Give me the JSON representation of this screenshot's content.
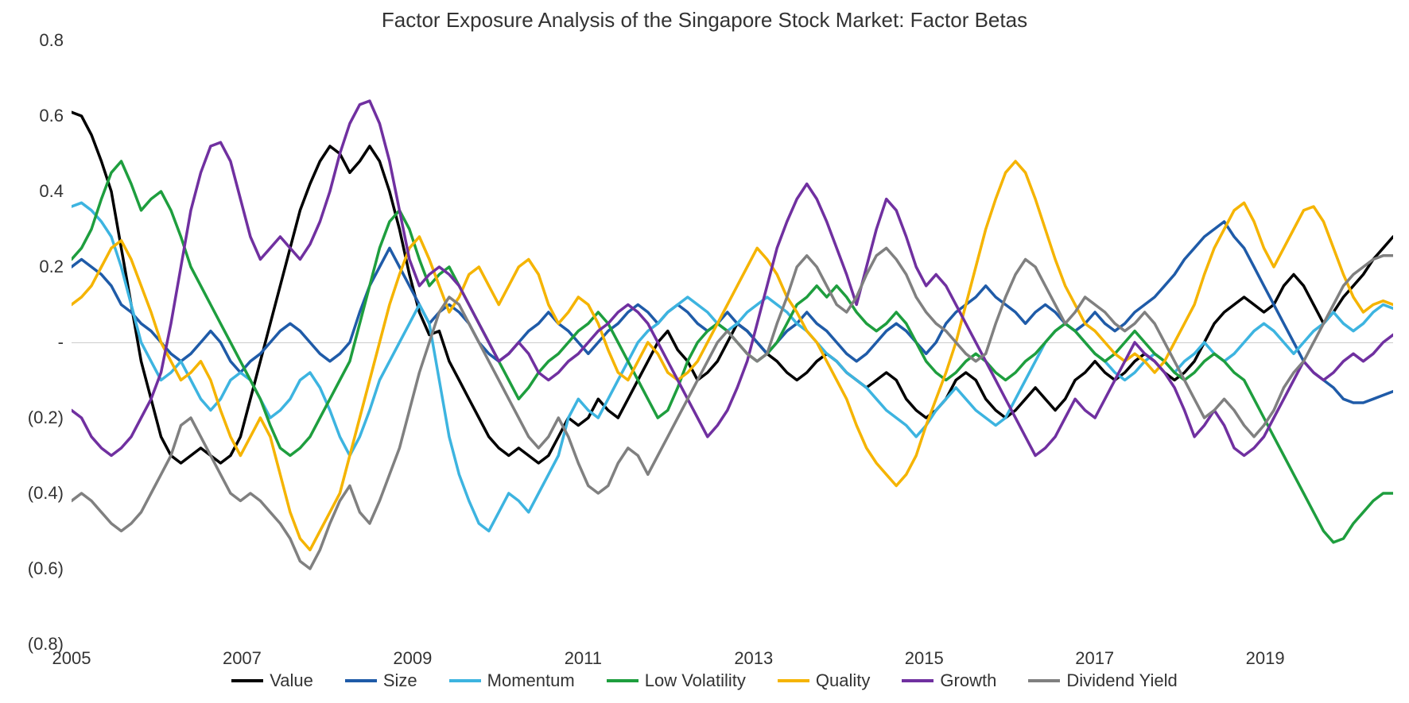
{
  "chart": {
    "type": "line",
    "title": "Factor Exposure Analysis of the Singapore Stock Market: Factor Betas",
    "title_fontsize": 26,
    "title_color": "#333333",
    "background_color": "#ffffff",
    "zero_line_color": "#cccccc",
    "label_fontsize": 22,
    "line_width": 3.5,
    "x_axis": {
      "ticks": [
        2005,
        2007,
        2009,
        2011,
        2013,
        2015,
        2017,
        2019
      ],
      "min": 2005,
      "max": 2020.5
    },
    "y_axis": {
      "ticks": [
        {
          "value": 0.8,
          "label": "0.8"
        },
        {
          "value": 0.6,
          "label": "0.6"
        },
        {
          "value": 0.4,
          "label": "0.4"
        },
        {
          "value": 0.2,
          "label": "0.2"
        },
        {
          "value": 0.0,
          "label": "-"
        },
        {
          "value": -0.2,
          "label": "(0.2)"
        },
        {
          "value": -0.4,
          "label": "(0.4)"
        },
        {
          "value": -0.6,
          "label": "(0.6)"
        },
        {
          "value": -0.8,
          "label": "(0.8)"
        }
      ],
      "min": -0.8,
      "max": 0.8
    },
    "series": [
      {
        "name": "Value",
        "color": "#000000",
        "data": [
          0.61,
          0.6,
          0.55,
          0.48,
          0.4,
          0.25,
          0.1,
          -0.05,
          -0.15,
          -0.25,
          -0.3,
          -0.32,
          -0.3,
          -0.28,
          -0.3,
          -0.32,
          -0.3,
          -0.25,
          -0.15,
          -0.05,
          0.05,
          0.15,
          0.25,
          0.35,
          0.42,
          0.48,
          0.52,
          0.5,
          0.45,
          0.48,
          0.52,
          0.48,
          0.4,
          0.3,
          0.18,
          0.08,
          0.02,
          0.03,
          -0.05,
          -0.1,
          -0.15,
          -0.2,
          -0.25,
          -0.28,
          -0.3,
          -0.28,
          -0.3,
          -0.32,
          -0.3,
          -0.25,
          -0.2,
          -0.22,
          -0.2,
          -0.15,
          -0.18,
          -0.2,
          -0.15,
          -0.1,
          -0.05,
          0.0,
          0.03,
          -0.02,
          -0.05,
          -0.1,
          -0.08,
          -0.05,
          0.0,
          0.05,
          0.03,
          0.0,
          -0.03,
          -0.05,
          -0.08,
          -0.1,
          -0.08,
          -0.05,
          -0.03,
          -0.05,
          -0.08,
          -0.1,
          -0.12,
          -0.1,
          -0.08,
          -0.1,
          -0.15,
          -0.18,
          -0.2,
          -0.18,
          -0.15,
          -0.1,
          -0.08,
          -0.1,
          -0.15,
          -0.18,
          -0.2,
          -0.18,
          -0.15,
          -0.12,
          -0.15,
          -0.18,
          -0.15,
          -0.1,
          -0.08,
          -0.05,
          -0.08,
          -0.1,
          -0.08,
          -0.05,
          -0.03,
          -0.05,
          -0.08,
          -0.1,
          -0.08,
          -0.05,
          0.0,
          0.05,
          0.08,
          0.1,
          0.12,
          0.1,
          0.08,
          0.1,
          0.15,
          0.18,
          0.15,
          0.1,
          0.05,
          0.08,
          0.12,
          0.15,
          0.18,
          0.22,
          0.25,
          0.28
        ]
      },
      {
        "name": "Size",
        "color": "#1f5ba8",
        "data": [
          0.2,
          0.22,
          0.2,
          0.18,
          0.15,
          0.1,
          0.08,
          0.05,
          0.03,
          0.0,
          -0.03,
          -0.05,
          -0.03,
          0.0,
          0.03,
          0.0,
          -0.05,
          -0.08,
          -0.05,
          -0.03,
          0.0,
          0.03,
          0.05,
          0.03,
          0.0,
          -0.03,
          -0.05,
          -0.03,
          0.0,
          0.08,
          0.15,
          0.2,
          0.25,
          0.2,
          0.15,
          0.1,
          0.05,
          0.08,
          0.1,
          0.08,
          0.05,
          0.0,
          -0.03,
          -0.05,
          -0.03,
          0.0,
          0.03,
          0.05,
          0.08,
          0.05,
          0.03,
          0.0,
          -0.03,
          0.0,
          0.03,
          0.05,
          0.08,
          0.1,
          0.08,
          0.05,
          0.08,
          0.1,
          0.08,
          0.05,
          0.03,
          0.05,
          0.08,
          0.05,
          0.03,
          0.0,
          -0.03,
          0.0,
          0.03,
          0.05,
          0.08,
          0.05,
          0.03,
          0.0,
          -0.03,
          -0.05,
          -0.03,
          0.0,
          0.03,
          0.05,
          0.03,
          0.0,
          -0.03,
          0.0,
          0.05,
          0.08,
          0.1,
          0.12,
          0.15,
          0.12,
          0.1,
          0.08,
          0.05,
          0.08,
          0.1,
          0.08,
          0.05,
          0.03,
          0.05,
          0.08,
          0.05,
          0.03,
          0.05,
          0.08,
          0.1,
          0.12,
          0.15,
          0.18,
          0.22,
          0.25,
          0.28,
          0.3,
          0.32,
          0.28,
          0.25,
          0.2,
          0.15,
          0.1,
          0.05,
          0.0,
          -0.05,
          -0.08,
          -0.1,
          -0.12,
          -0.15,
          -0.16,
          -0.16,
          -0.15,
          -0.14,
          -0.13
        ]
      },
      {
        "name": "Momentum",
        "color": "#3db4e0",
        "data": [
          0.36,
          0.37,
          0.35,
          0.32,
          0.28,
          0.2,
          0.1,
          0.0,
          -0.05,
          -0.1,
          -0.08,
          -0.05,
          -0.1,
          -0.15,
          -0.18,
          -0.15,
          -0.1,
          -0.08,
          -0.1,
          -0.15,
          -0.2,
          -0.18,
          -0.15,
          -0.1,
          -0.08,
          -0.12,
          -0.18,
          -0.25,
          -0.3,
          -0.25,
          -0.18,
          -0.1,
          -0.05,
          0.0,
          0.05,
          0.1,
          0.05,
          -0.1,
          -0.25,
          -0.35,
          -0.42,
          -0.48,
          -0.5,
          -0.45,
          -0.4,
          -0.42,
          -0.45,
          -0.4,
          -0.35,
          -0.3,
          -0.2,
          -0.15,
          -0.18,
          -0.2,
          -0.15,
          -0.1,
          -0.05,
          0.0,
          0.03,
          0.05,
          0.08,
          0.1,
          0.12,
          0.1,
          0.08,
          0.05,
          0.03,
          0.05,
          0.08,
          0.1,
          0.12,
          0.1,
          0.08,
          0.05,
          0.03,
          0.0,
          -0.03,
          -0.05,
          -0.08,
          -0.1,
          -0.12,
          -0.15,
          -0.18,
          -0.2,
          -0.22,
          -0.25,
          -0.22,
          -0.18,
          -0.15,
          -0.12,
          -0.15,
          -0.18,
          -0.2,
          -0.22,
          -0.2,
          -0.15,
          -0.1,
          -0.05,
          0.0,
          0.03,
          0.05,
          0.03,
          0.0,
          -0.03,
          -0.05,
          -0.08,
          -0.1,
          -0.08,
          -0.05,
          -0.03,
          -0.05,
          -0.08,
          -0.05,
          -0.03,
          0.0,
          -0.03,
          -0.05,
          -0.03,
          0.0,
          0.03,
          0.05,
          0.03,
          0.0,
          -0.03,
          0.0,
          0.03,
          0.05,
          0.08,
          0.05,
          0.03,
          0.05,
          0.08,
          0.1,
          0.09
        ]
      },
      {
        "name": "Low Volatility",
        "color": "#1e9e3e",
        "data": [
          0.22,
          0.25,
          0.3,
          0.38,
          0.45,
          0.48,
          0.42,
          0.35,
          0.38,
          0.4,
          0.35,
          0.28,
          0.2,
          0.15,
          0.1,
          0.05,
          0.0,
          -0.05,
          -0.1,
          -0.15,
          -0.22,
          -0.28,
          -0.3,
          -0.28,
          -0.25,
          -0.2,
          -0.15,
          -0.1,
          -0.05,
          0.05,
          0.15,
          0.25,
          0.32,
          0.35,
          0.3,
          0.22,
          0.15,
          0.18,
          0.2,
          0.15,
          0.1,
          0.05,
          0.0,
          -0.05,
          -0.1,
          -0.15,
          -0.12,
          -0.08,
          -0.05,
          -0.03,
          0.0,
          0.03,
          0.05,
          0.08,
          0.05,
          0.0,
          -0.05,
          -0.1,
          -0.15,
          -0.2,
          -0.18,
          -0.12,
          -0.05,
          0.0,
          0.03,
          0.05,
          0.03,
          0.0,
          -0.03,
          -0.05,
          -0.03,
          0.0,
          0.05,
          0.1,
          0.12,
          0.15,
          0.12,
          0.15,
          0.12,
          0.08,
          0.05,
          0.03,
          0.05,
          0.08,
          0.05,
          0.0,
          -0.05,
          -0.08,
          -0.1,
          -0.08,
          -0.05,
          -0.03,
          -0.05,
          -0.08,
          -0.1,
          -0.08,
          -0.05,
          -0.03,
          0.0,
          0.03,
          0.05,
          0.03,
          0.0,
          -0.03,
          -0.05,
          -0.03,
          0.0,
          0.03,
          0.0,
          -0.03,
          -0.05,
          -0.08,
          -0.1,
          -0.08,
          -0.05,
          -0.03,
          -0.05,
          -0.08,
          -0.1,
          -0.15,
          -0.2,
          -0.25,
          -0.3,
          -0.35,
          -0.4,
          -0.45,
          -0.5,
          -0.53,
          -0.52,
          -0.48,
          -0.45,
          -0.42,
          -0.4,
          -0.4
        ]
      },
      {
        "name": "Quality",
        "color": "#f5b400",
        "data": [
          0.1,
          0.12,
          0.15,
          0.2,
          0.25,
          0.27,
          0.22,
          0.15,
          0.08,
          0.0,
          -0.05,
          -0.1,
          -0.08,
          -0.05,
          -0.1,
          -0.18,
          -0.25,
          -0.3,
          -0.25,
          -0.2,
          -0.25,
          -0.35,
          -0.45,
          -0.52,
          -0.55,
          -0.5,
          -0.45,
          -0.4,
          -0.3,
          -0.2,
          -0.1,
          0.0,
          0.1,
          0.18,
          0.25,
          0.28,
          0.22,
          0.15,
          0.08,
          0.12,
          0.18,
          0.2,
          0.15,
          0.1,
          0.15,
          0.2,
          0.22,
          0.18,
          0.1,
          0.05,
          0.08,
          0.12,
          0.1,
          0.05,
          -0.02,
          -0.08,
          -0.1,
          -0.05,
          0.0,
          -0.03,
          -0.08,
          -0.1,
          -0.08,
          -0.05,
          0.0,
          0.05,
          0.1,
          0.15,
          0.2,
          0.25,
          0.22,
          0.18,
          0.12,
          0.08,
          0.03,
          0.0,
          -0.05,
          -0.1,
          -0.15,
          -0.22,
          -0.28,
          -0.32,
          -0.35,
          -0.38,
          -0.35,
          -0.3,
          -0.22,
          -0.15,
          -0.08,
          0.0,
          0.1,
          0.2,
          0.3,
          0.38,
          0.45,
          0.48,
          0.45,
          0.38,
          0.3,
          0.22,
          0.15,
          0.1,
          0.05,
          0.03,
          0.0,
          -0.03,
          -0.05,
          -0.03,
          -0.05,
          -0.08,
          -0.05,
          0.0,
          0.05,
          0.1,
          0.18,
          0.25,
          0.3,
          0.35,
          0.37,
          0.32,
          0.25,
          0.2,
          0.25,
          0.3,
          0.35,
          0.36,
          0.32,
          0.25,
          0.18,
          0.12,
          0.08,
          0.1,
          0.11,
          0.1
        ]
      },
      {
        "name": "Growth",
        "color": "#7030a0",
        "data": [
          -0.18,
          -0.2,
          -0.25,
          -0.28,
          -0.3,
          -0.28,
          -0.25,
          -0.2,
          -0.15,
          -0.08,
          0.05,
          0.2,
          0.35,
          0.45,
          0.52,
          0.53,
          0.48,
          0.38,
          0.28,
          0.22,
          0.25,
          0.28,
          0.25,
          0.22,
          0.26,
          0.32,
          0.4,
          0.5,
          0.58,
          0.63,
          0.64,
          0.58,
          0.48,
          0.35,
          0.22,
          0.15,
          0.18,
          0.2,
          0.18,
          0.15,
          0.1,
          0.05,
          0.0,
          -0.05,
          -0.03,
          0.0,
          -0.03,
          -0.08,
          -0.1,
          -0.08,
          -0.05,
          -0.03,
          0.0,
          0.03,
          0.05,
          0.08,
          0.1,
          0.08,
          0.05,
          0.0,
          -0.05,
          -0.1,
          -0.15,
          -0.2,
          -0.25,
          -0.22,
          -0.18,
          -0.12,
          -0.05,
          0.05,
          0.15,
          0.25,
          0.32,
          0.38,
          0.42,
          0.38,
          0.32,
          0.25,
          0.18,
          0.1,
          0.2,
          0.3,
          0.38,
          0.35,
          0.28,
          0.2,
          0.15,
          0.18,
          0.15,
          0.1,
          0.05,
          0.0,
          -0.05,
          -0.1,
          -0.15,
          -0.2,
          -0.25,
          -0.3,
          -0.28,
          -0.25,
          -0.2,
          -0.15,
          -0.18,
          -0.2,
          -0.15,
          -0.1,
          -0.05,
          0.0,
          -0.03,
          -0.05,
          -0.08,
          -0.12,
          -0.18,
          -0.25,
          -0.22,
          -0.18,
          -0.22,
          -0.28,
          -0.3,
          -0.28,
          -0.25,
          -0.2,
          -0.15,
          -0.1,
          -0.05,
          -0.08,
          -0.1,
          -0.08,
          -0.05,
          -0.03,
          -0.05,
          -0.03,
          0.0,
          0.02
        ]
      },
      {
        "name": "Dividend Yield",
        "color": "#808080",
        "data": [
          -0.42,
          -0.4,
          -0.42,
          -0.45,
          -0.48,
          -0.5,
          -0.48,
          -0.45,
          -0.4,
          -0.35,
          -0.3,
          -0.22,
          -0.2,
          -0.25,
          -0.3,
          -0.35,
          -0.4,
          -0.42,
          -0.4,
          -0.42,
          -0.45,
          -0.48,
          -0.52,
          -0.58,
          -0.6,
          -0.55,
          -0.48,
          -0.42,
          -0.38,
          -0.45,
          -0.48,
          -0.42,
          -0.35,
          -0.28,
          -0.18,
          -0.08,
          0.0,
          0.08,
          0.12,
          0.1,
          0.05,
          0.0,
          -0.05,
          -0.1,
          -0.15,
          -0.2,
          -0.25,
          -0.28,
          -0.25,
          -0.2,
          -0.25,
          -0.32,
          -0.38,
          -0.4,
          -0.38,
          -0.32,
          -0.28,
          -0.3,
          -0.35,
          -0.3,
          -0.25,
          -0.2,
          -0.15,
          -0.1,
          -0.05,
          0.0,
          0.03,
          0.0,
          -0.03,
          -0.05,
          -0.03,
          0.05,
          0.12,
          0.2,
          0.23,
          0.2,
          0.15,
          0.1,
          0.08,
          0.12,
          0.18,
          0.23,
          0.25,
          0.22,
          0.18,
          0.12,
          0.08,
          0.05,
          0.03,
          0.0,
          -0.03,
          -0.05,
          -0.03,
          0.05,
          0.12,
          0.18,
          0.22,
          0.2,
          0.15,
          0.1,
          0.05,
          0.08,
          0.12,
          0.1,
          0.08,
          0.05,
          0.03,
          0.05,
          0.08,
          0.05,
          0.0,
          -0.05,
          -0.1,
          -0.15,
          -0.2,
          -0.18,
          -0.15,
          -0.18,
          -0.22,
          -0.25,
          -0.22,
          -0.18,
          -0.12,
          -0.08,
          -0.05,
          0.0,
          0.05,
          0.1,
          0.15,
          0.18,
          0.2,
          0.22,
          0.23,
          0.23
        ]
      }
    ]
  }
}
